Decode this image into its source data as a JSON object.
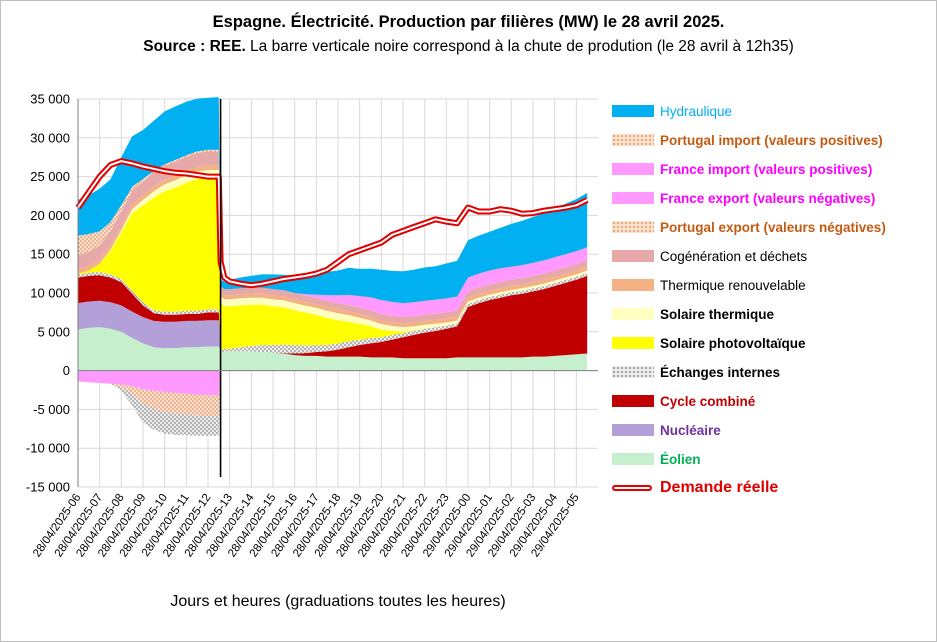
{
  "title": {
    "line1": "Espagne. Électricité. Production par filières (MW) le 28 avril 2025.",
    "line2_bold": "Source : REE.",
    "line2_rest": " La barre verticale noire correspond à la chute de prodution (le 28 avril à 12h35)"
  },
  "chart_data": {
    "type": "area",
    "stacked": true,
    "xlabel": "Jours et heures (graduations toutes les heures)",
    "ylim": [
      -15000,
      35000
    ],
    "yticks": [
      -15000,
      -10000,
      -5000,
      0,
      5000,
      10000,
      15000,
      20000,
      25000,
      30000,
      35000
    ],
    "ytick_labels": [
      "-15 000",
      "-10 000",
      "-5 000",
      "0",
      "5 000",
      "10 000",
      "15 000",
      "20 000",
      "25 000",
      "30 000",
      "35 000"
    ],
    "x_hours": [
      6,
      6.5,
      7,
      7.5,
      8,
      8.5,
      9,
      9.5,
      10,
      10.5,
      11,
      11.5,
      12,
      12.5,
      12.58,
      12.75,
      13,
      13.5,
      14,
      14.5,
      15,
      15.5,
      16,
      16.5,
      17,
      17.5,
      18,
      18.5,
      19,
      19.5,
      20,
      20.5,
      21,
      21.5,
      22,
      22.5,
      23,
      23.5,
      24,
      24.5,
      25,
      25.5,
      26,
      26.5,
      27,
      27.5,
      28,
      28.5,
      29,
      29.5
    ],
    "x_tick_labels": [
      "28/04/2025-06",
      "28/04/2025-07",
      "28/04/2025-08",
      "28/04/2025-09",
      "28/04/2025-10",
      "28/04/2025-11",
      "28/04/2025-12",
      "28/04/2025-13",
      "28/04/2025-14",
      "28/04/2025-15",
      "28/04/2025-16",
      "28/04/2025-17",
      "28/04/2025-18",
      "28/04/2025-19",
      "28/04/2025-20",
      "28/04/2025-21",
      "28/04/2025-22",
      "28/04/2025-23",
      "29/04/2025-00",
      "29/04/2025-01",
      "29/04/2025-02",
      "29/04/2025-03",
      "29/04/2025-04",
      "29/04/2025-05"
    ],
    "event_line_hour": 12.58,
    "grid": true,
    "legend_position": "right",
    "positive_series": [
      {
        "name": "Éolien",
        "color": "#c6efce",
        "label_color": "#00b050",
        "values": [
          5300,
          5500,
          5600,
          5400,
          5000,
          4200,
          3500,
          3000,
          2900,
          2900,
          3000,
          3000,
          3100,
          3100,
          2400,
          2500,
          2500,
          2500,
          2500,
          2400,
          2300,
          2200,
          2000,
          1900,
          1900,
          1800,
          1800,
          1800,
          1800,
          1700,
          1700,
          1700,
          1600,
          1600,
          1600,
          1600,
          1600,
          1700,
          1700,
          1700,
          1700,
          1700,
          1700,
          1700,
          1800,
          1800,
          1900,
          2000,
          2100,
          2200
        ]
      },
      {
        "name": "Nucléaire",
        "color": "#b4a0d8",
        "label_color": "#7030a0",
        "values": [
          3400,
          3400,
          3400,
          3400,
          3400,
          3400,
          3400,
          3400,
          3400,
          3400,
          3400,
          3400,
          3400,
          3400,
          0,
          0,
          0,
          0,
          0,
          0,
          0,
          0,
          0,
          0,
          0,
          0,
          0,
          0,
          0,
          0,
          0,
          0,
          0,
          0,
          0,
          0,
          0,
          0,
          0,
          0,
          0,
          0,
          0,
          0,
          0,
          0,
          0,
          0,
          0,
          0
        ]
      },
      {
        "name": "Cycle combiné",
        "color": "#c00000",
        "label_color": "#c00000",
        "values": [
          3300,
          3300,
          3300,
          3200,
          3000,
          2300,
          1500,
          1000,
          900,
          900,
          900,
          900,
          1000,
          1000,
          0,
          0,
          0,
          0,
          0,
          0,
          0,
          50,
          200,
          350,
          500,
          700,
          900,
          1200,
          1500,
          1800,
          2000,
          2300,
          2700,
          3000,
          3300,
          3500,
          3800,
          4000,
          6500,
          7000,
          7400,
          7700,
          8000,
          8200,
          8400,
          8700,
          9000,
          9300,
          9600,
          10000
        ]
      },
      {
        "name": "Échanges internes",
        "color": "#d9d9d9",
        "label_color": "#000000",
        "values": [
          400,
          400,
          400,
          400,
          400,
          400,
          400,
          400,
          400,
          400,
          400,
          400,
          400,
          400,
          300,
          300,
          300,
          500,
          700,
          900,
          1000,
          1100,
          1100,
          1000,
          900,
          800,
          800,
          800,
          700,
          700,
          600,
          600,
          500,
          500,
          500,
          500,
          400,
          400,
          400,
          400,
          400,
          400,
          400,
          400,
          400,
          400,
          400,
          400,
          400,
          400
        ]
      },
      {
        "name": "Solaire photovoltaïque",
        "color": "#ffff00",
        "label_color": "#000000",
        "values": [
          100,
          300,
          1000,
          3000,
          6000,
          10000,
          12500,
          14500,
          15500,
          16000,
          16500,
          17000,
          17000,
          17000,
          6000,
          5500,
          5500,
          5400,
          5300,
          5200,
          5000,
          4800,
          4500,
          4200,
          3900,
          3500,
          3000,
          2500,
          2000,
          1500,
          1000,
          500,
          200,
          50,
          0,
          0,
          0,
          0,
          0,
          0,
          0,
          0,
          0,
          0,
          0,
          0,
          0,
          0,
          0,
          0
        ]
      },
      {
        "name": "Solaire thermique",
        "color": "#ffffc0",
        "label_color": "#000000",
        "values": [
          0,
          0,
          50,
          150,
          300,
          500,
          700,
          800,
          900,
          950,
          950,
          950,
          950,
          950,
          900,
          900,
          900,
          900,
          900,
          900,
          900,
          900,
          900,
          900,
          900,
          900,
          900,
          850,
          800,
          750,
          700,
          650,
          600,
          550,
          500,
          450,
          400,
          350,
          300,
          300,
          300,
          300,
          300,
          300,
          300,
          300,
          300,
          300,
          300,
          300
        ]
      },
      {
        "name": "Thermique renouvelable",
        "color": "#f4b183",
        "label_color": "#000000",
        "values": [
          600,
          600,
          600,
          600,
          600,
          600,
          600,
          600,
          600,
          600,
          600,
          600,
          600,
          600,
          500,
          500,
          500,
          500,
          500,
          500,
          500,
          500,
          500,
          500,
          500,
          500,
          500,
          500,
          500,
          500,
          500,
          500,
          500,
          500,
          500,
          500,
          500,
          500,
          500,
          500,
          500,
          500,
          500,
          500,
          500,
          500,
          500,
          500,
          500,
          500
        ]
      },
      {
        "name": "Cogénération et déchets",
        "color": "#e6a8a8",
        "label_color": "#000000",
        "values": [
          1800,
          1800,
          1800,
          1800,
          1800,
          1800,
          1800,
          1800,
          1800,
          1800,
          1800,
          1800,
          1800,
          1800,
          800,
          800,
          800,
          800,
          800,
          800,
          800,
          800,
          800,
          800,
          800,
          800,
          800,
          800,
          800,
          800,
          800,
          800,
          800,
          800,
          800,
          800,
          800,
          800,
          800,
          800,
          800,
          800,
          800,
          800,
          800,
          800,
          800,
          800,
          800,
          800
        ]
      },
      {
        "name": "Portugal import (valeurs positives)",
        "color": "#f8cbad",
        "label_color": "#c55a11",
        "values": [
          2500,
          2300,
          1800,
          1200,
          800,
          500,
          300,
          200,
          200,
          200,
          200,
          200,
          200,
          200,
          0,
          0,
          0,
          0,
          0,
          0,
          0,
          0,
          0,
          0,
          0,
          0,
          0,
          0,
          0,
          0,
          0,
          0,
          0,
          0,
          0,
          0,
          0,
          0,
          0,
          0,
          0,
          0,
          0,
          0,
          0,
          0,
          0,
          0,
          0,
          0
        ]
      },
      {
        "name": "France import (valeurs positives)",
        "color": "#ff99ff",
        "label_color": "#ff00ff",
        "values": [
          0,
          0,
          0,
          0,
          0,
          0,
          0,
          0,
          0,
          0,
          0,
          0,
          0,
          0,
          0,
          0,
          0,
          0,
          0,
          0,
          0,
          0,
          0,
          200,
          400,
          700,
          1000,
          1300,
          1500,
          1700,
          1800,
          1800,
          1800,
          1800,
          1800,
          1800,
          1800,
          1800,
          1800,
          1800,
          1800,
          1800,
          1700,
          1700,
          1700,
          1700,
          1700,
          1700,
          1700,
          1700
        ]
      },
      {
        "name": "Hydraulique",
        "color": "#00b0f0",
        "label_color": "#00b0f0",
        "values": [
          4600,
          5000,
          5500,
          5500,
          6200,
          6500,
          6300,
          6500,
          6800,
          6900,
          6900,
          6800,
          6700,
          6800,
          800,
          1000,
          1200,
          1400,
          1500,
          1700,
          1900,
          2000,
          2200,
          2400,
          2700,
          3000,
          3200,
          3500,
          3500,
          3700,
          3900,
          4000,
          4100,
          4200,
          4300,
          4300,
          4500,
          4600,
          4800,
          4900,
          5000,
          5200,
          5500,
          5700,
          5900,
          6100,
          6300,
          6500,
          6700,
          7000
        ]
      }
    ],
    "negative_series": [
      {
        "name": "France export (valeurs négatives)",
        "color": "#ff99ff",
        "label_color": "#ff00ff",
        "values": [
          -1400,
          -1500,
          -1600,
          -1700,
          -1800,
          -2000,
          -2400,
          -2600,
          -2800,
          -2900,
          -3000,
          -3100,
          -3200,
          -3200,
          0,
          0,
          0,
          0,
          0,
          0,
          0,
          0,
          0,
          0,
          0,
          0,
          0,
          0,
          0,
          0,
          0,
          0,
          0,
          0,
          0,
          0,
          0,
          0,
          0,
          0,
          0,
          0,
          0,
          0,
          0,
          0,
          0,
          0,
          0,
          0
        ]
      },
      {
        "name": "Portugal export (valeurs négatives)",
        "color": "#f8cbad",
        "label_color": "#c55a11",
        "values": [
          0,
          0,
          0,
          0,
          -300,
          -1000,
          -1800,
          -2300,
          -2500,
          -2600,
          -2600,
          -2700,
          -2700,
          -2700,
          0,
          0,
          0,
          0,
          0,
          0,
          0,
          0,
          0,
          0,
          0,
          0,
          0,
          0,
          0,
          0,
          0,
          0,
          0,
          0,
          0,
          0,
          0,
          0,
          0,
          0,
          0,
          0,
          0,
          0,
          0,
          0,
          0,
          0,
          0,
          0
        ]
      },
      {
        "name": "Échanges internes",
        "color": "#d9d9d9",
        "label_color": "#000000",
        "values": [
          0,
          0,
          0,
          0,
          -500,
          -1500,
          -2500,
          -2700,
          -2800,
          -2800,
          -2700,
          -2600,
          -2500,
          -2500,
          0,
          0,
          0,
          0,
          0,
          0,
          0,
          0,
          0,
          0,
          0,
          0,
          0,
          0,
          0,
          0,
          0,
          0,
          0,
          0,
          0,
          0,
          0,
          0,
          0,
          0,
          0,
          0,
          0,
          0,
          0,
          0,
          0,
          0,
          0,
          0
        ]
      }
    ],
    "demand": {
      "name": "Demande réelle",
      "color": "#e00000",
      "values": [
        21000,
        23000,
        25000,
        26500,
        27000,
        26700,
        26300,
        26000,
        25700,
        25500,
        25400,
        25200,
        25000,
        25000,
        14000,
        12000,
        11500,
        11200,
        11000,
        11200,
        11500,
        11800,
        12000,
        12200,
        12500,
        13000,
        14000,
        15000,
        15500,
        16000,
        16500,
        17500,
        18000,
        18500,
        19000,
        19500,
        19200,
        19000,
        21000,
        20500,
        20500,
        20800,
        20600,
        20200,
        20300,
        20600,
        20800,
        21000,
        21300,
        22000
      ]
    }
  },
  "legend": {
    "items": [
      {
        "label": "Hydraulique",
        "color": "#00b0f0",
        "label_color": "#00b0f0",
        "weight": "normal"
      },
      {
        "label": "Portugal import (valeurs positives)",
        "color": "#f8cbad",
        "label_color": "#c55a11",
        "weight": "bold"
      },
      {
        "label": "France import (valeurs positives)",
        "color": "#ff99ff",
        "label_color": "#ff00ff",
        "weight": "bold"
      },
      {
        "label": "France export (valeurs négatives)",
        "color": "#ff99ff",
        "label_color": "#ff00ff",
        "weight": "bold"
      },
      {
        "label": "Portugal export (valeurs négatives)",
        "color": "#f8cbad",
        "label_color": "#c55a11",
        "weight": "bold"
      },
      {
        "label": "Cogénération et déchets",
        "color": "#e6a8a8",
        "label_color": "#000000",
        "weight": "normal"
      },
      {
        "label": "Thermique renouvelable",
        "color": "#f4b183",
        "label_color": "#000000",
        "weight": "normal"
      },
      {
        "label": "Solaire thermique",
        "color": "#ffffc0",
        "label_color": "#000000",
        "weight": "bold"
      },
      {
        "label": "Solaire photovoltaïque",
        "color": "#ffff00",
        "label_color": "#000000",
        "weight": "bold"
      },
      {
        "label": "Échanges internes",
        "color": "#d9d9d9",
        "label_color": "#000000",
        "weight": "bold"
      },
      {
        "label": "Cycle combiné",
        "color": "#c00000",
        "label_color": "#c00000",
        "weight": "bold"
      },
      {
        "label": "Nucléaire",
        "color": "#b4a0d8",
        "label_color": "#7030a0",
        "weight": "bold"
      },
      {
        "label": "Éolien",
        "color": "#c6efce",
        "label_color": "#00b050",
        "weight": "bold"
      }
    ],
    "demand_label": "Demande réelle",
    "demand_color": "#e00000"
  }
}
